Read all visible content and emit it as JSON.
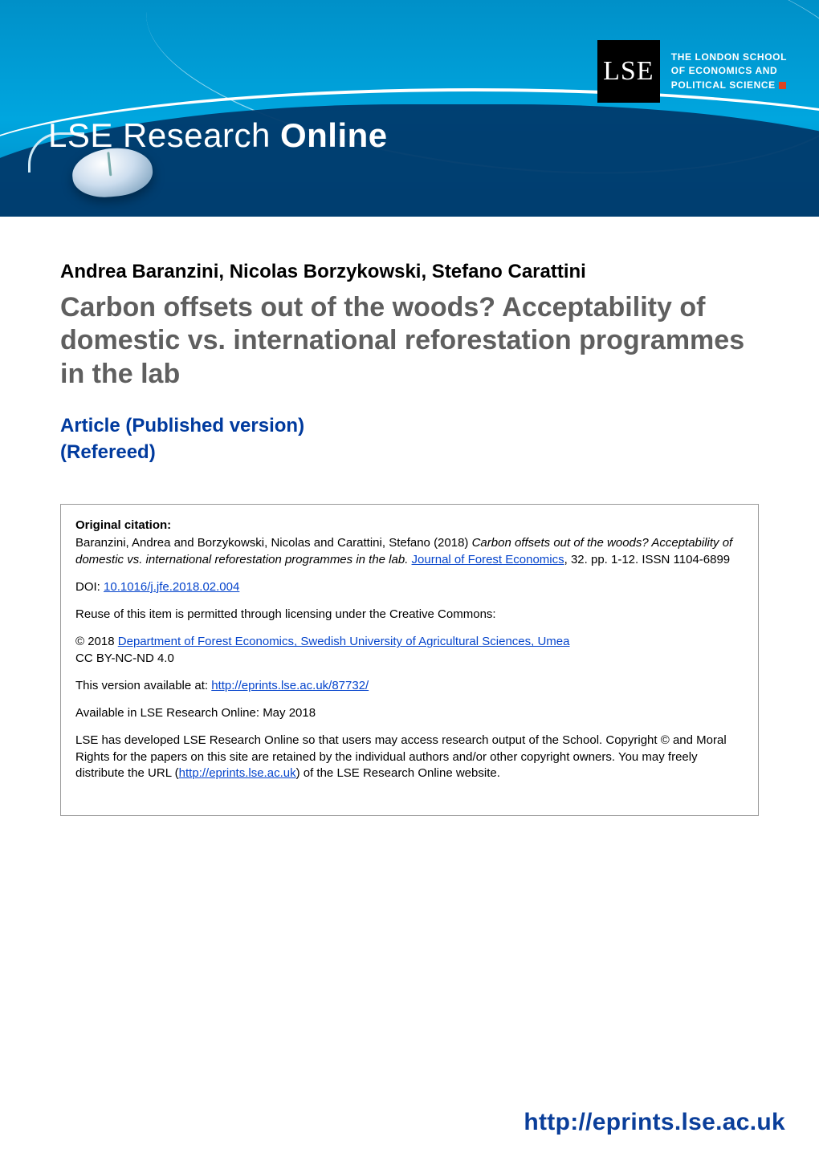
{
  "banner": {
    "title_thin": "LSE Research ",
    "title_bold": "Online",
    "lse_logo_text": "LSE",
    "school_line1": "THE LONDON SCHOOL",
    "school_line2": "OF ECONOMICS AND",
    "school_line3": "POLITICAL SCIENCE",
    "colors": {
      "bg_top": "#0090c8",
      "bg_bottom": "#0188c1",
      "curve_dark": "#003a6b",
      "accent_red": "#d42"
    }
  },
  "authors": "Andrea Baranzini, Nicolas Borzykowski, Stefano Carattini",
  "title": "Carbon offsets out of the woods? Acceptability of domestic vs. international reforestation programmes in the lab",
  "article_type_line1": "Article (Published version)",
  "article_type_line2": "(Refereed)",
  "citation": {
    "heading": "Original citation:",
    "text_before_italic": "Baranzini, Andrea and Borzykowski, Nicolas and Carattini, Stefano (2018) ",
    "italic": "Carbon offsets out of the woods? Acceptability of domestic vs. international reforestation programmes in the lab.",
    "journal_link": "Journal of Forest Economics",
    "after_journal": ", 32. pp. 1-12. ISSN 1104-6899",
    "doi_label": "DOI: ",
    "doi_link": "10.1016/j.jfe.2018.02.004",
    "reuse": "Reuse of this item is permitted through licensing under the Creative Commons:",
    "copyright_prefix": "© 2018 ",
    "copyright_link": "Department of Forest Economics, Swedish University of Agricultural Sciences, Umea",
    "license": "CC BY-NC-ND 4.0",
    "available_prefix": "This version available at: ",
    "available_link": "http://eprints.lse.ac.uk/87732/",
    "available_month": "Available in LSE Research Online: May 2018",
    "boiler1": "LSE has developed LSE Research Online so that users may access research output of the School. Copyright © and Moral Rights for the papers on this site are retained by the individual authors and/or other copyright owners. You may freely distribute the URL (",
    "boiler_link": "http://eprints.lse.ac.uk",
    "boiler2": ") of the LSE Research Online website."
  },
  "footer_url": "http://eprints.lse.ac.uk",
  "colors": {
    "title_grey": "#5f5f5f",
    "type_blue": "#003a9e",
    "link_blue": "#0645cc",
    "footer_blue": "#0a3e9a",
    "box_border": "#9a9a9a"
  }
}
